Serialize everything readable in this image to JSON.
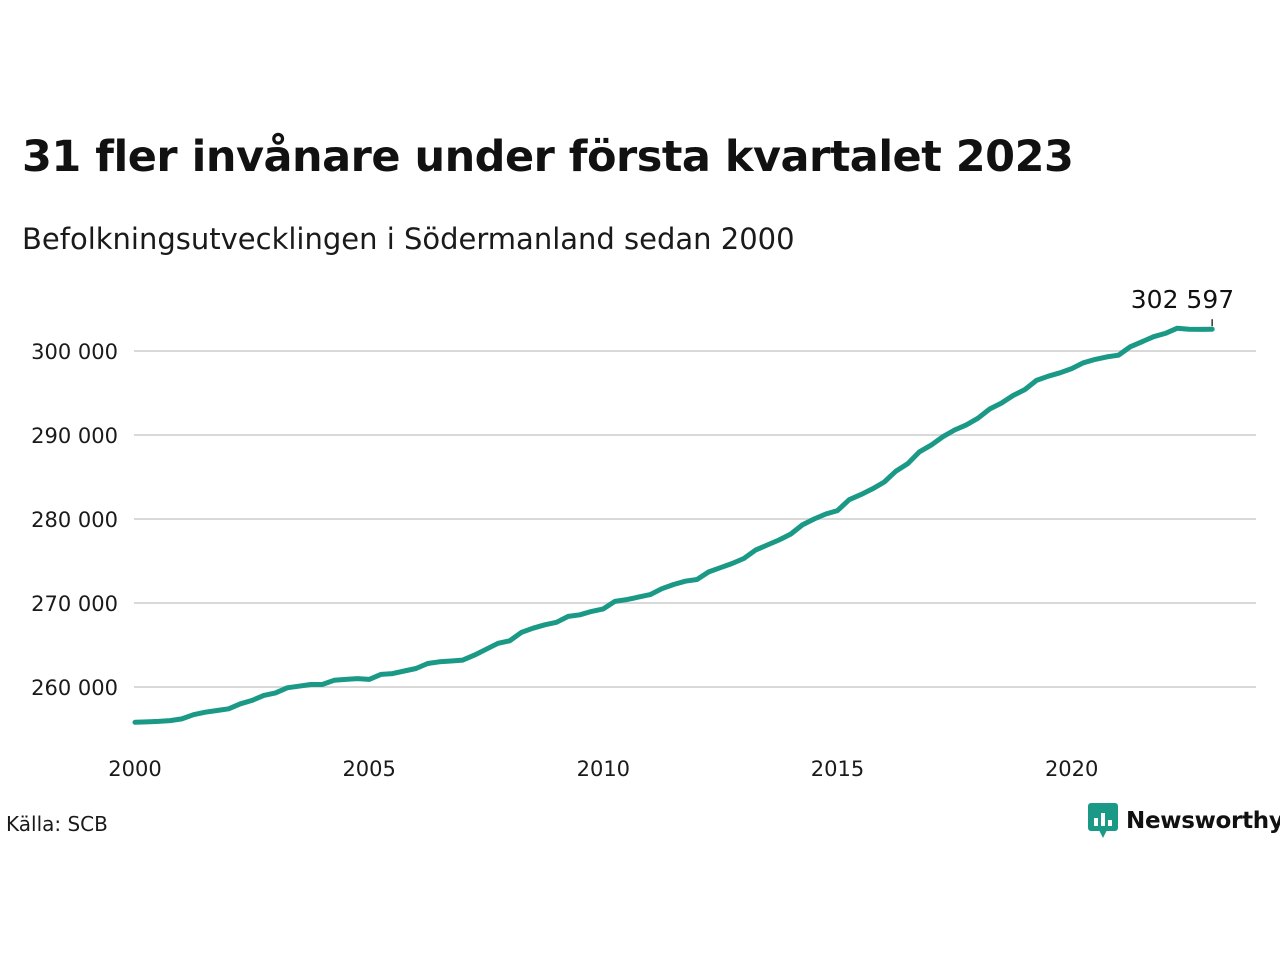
{
  "title": "31 fler invånare under första kvartalet 2023",
  "subtitle": "Befolkningsutvecklingen i Södermanland sedan 2000",
  "source": "Källa: SCB",
  "brand": {
    "name": "Newsworthy",
    "color": "#1a9a86",
    "icon": "newsworthy-logo-icon"
  },
  "colors": {
    "line": "#1a9a86",
    "grid": "#d9d9d9",
    "text": "#111111"
  },
  "chart_data": {
    "type": "line",
    "title": "31 fler invånare under första kvartalet 2023",
    "subtitle": "Befolkningsutvecklingen i Södermanland sedan 2000",
    "xlabel": "",
    "ylabel": "",
    "xlim": [
      2000,
      2024
    ],
    "ylim": [
      255000,
      303500
    ],
    "x_ticks": [
      2000,
      2005,
      2010,
      2015,
      2020
    ],
    "x_tick_labels": [
      "2000",
      "2005",
      "2010",
      "2015",
      "2020"
    ],
    "y_ticks": [
      260000,
      270000,
      280000,
      290000,
      300000
    ],
    "y_tick_labels": [
      "260 000",
      "270 000",
      "280 000",
      "290 000",
      "300 000"
    ],
    "grid": true,
    "end_label": "302 597",
    "series": [
      {
        "color": "#1a9a86",
        "points": [
          [
            2000.0,
            255800
          ],
          [
            2000.25,
            255850
          ],
          [
            2000.5,
            255900
          ],
          [
            2000.75,
            256000
          ],
          [
            2001.0,
            256200
          ],
          [
            2001.25,
            256700
          ],
          [
            2001.5,
            257000
          ],
          [
            2001.75,
            257200
          ],
          [
            2002.0,
            257400
          ],
          [
            2002.25,
            258000
          ],
          [
            2002.5,
            258400
          ],
          [
            2002.75,
            259000
          ],
          [
            2003.0,
            259300
          ],
          [
            2003.25,
            259900
          ],
          [
            2003.5,
            260100
          ],
          [
            2003.75,
            260300
          ],
          [
            2004.0,
            260300
          ],
          [
            2004.25,
            260800
          ],
          [
            2004.5,
            260900
          ],
          [
            2004.75,
            261000
          ],
          [
            2005.0,
            260900
          ],
          [
            2005.25,
            261500
          ],
          [
            2005.5,
            261600
          ],
          [
            2005.75,
            261900
          ],
          [
            2006.0,
            262200
          ],
          [
            2006.25,
            262800
          ],
          [
            2006.5,
            263000
          ],
          [
            2006.75,
            263100
          ],
          [
            2007.0,
            263200
          ],
          [
            2007.25,
            263800
          ],
          [
            2007.5,
            264500
          ],
          [
            2007.75,
            265200
          ],
          [
            2008.0,
            265500
          ],
          [
            2008.25,
            266500
          ],
          [
            2008.5,
            267000
          ],
          [
            2008.75,
            267400
          ],
          [
            2009.0,
            267700
          ],
          [
            2009.25,
            268400
          ],
          [
            2009.5,
            268600
          ],
          [
            2009.75,
            269000
          ],
          [
            2010.0,
            269300
          ],
          [
            2010.25,
            270200
          ],
          [
            2010.5,
            270400
          ],
          [
            2010.75,
            270700
          ],
          [
            2011.0,
            271000
          ],
          [
            2011.25,
            271700
          ],
          [
            2011.5,
            272200
          ],
          [
            2011.75,
            272600
          ],
          [
            2012.0,
            272800
          ],
          [
            2012.25,
            273700
          ],
          [
            2012.5,
            274200
          ],
          [
            2012.75,
            274700
          ],
          [
            2013.0,
            275300
          ],
          [
            2013.25,
            276300
          ],
          [
            2013.5,
            276900
          ],
          [
            2013.75,
            277500
          ],
          [
            2014.0,
            278200
          ],
          [
            2014.25,
            279300
          ],
          [
            2014.5,
            280000
          ],
          [
            2014.75,
            280600
          ],
          [
            2015.0,
            281000
          ],
          [
            2015.25,
            282300
          ],
          [
            2015.5,
            282900
          ],
          [
            2015.75,
            283600
          ],
          [
            2016.0,
            284400
          ],
          [
            2016.25,
            285700
          ],
          [
            2016.5,
            286600
          ],
          [
            2016.75,
            288000
          ],
          [
            2017.0,
            288800
          ],
          [
            2017.25,
            289800
          ],
          [
            2017.5,
            290600
          ],
          [
            2017.75,
            291200
          ],
          [
            2018.0,
            292000
          ],
          [
            2018.25,
            293100
          ],
          [
            2018.5,
            293800
          ],
          [
            2018.75,
            294700
          ],
          [
            2019.0,
            295400
          ],
          [
            2019.25,
            296500
          ],
          [
            2019.5,
            297000
          ],
          [
            2019.75,
            297400
          ],
          [
            2020.0,
            297900
          ],
          [
            2020.25,
            298600
          ],
          [
            2020.5,
            299000
          ],
          [
            2020.75,
            299300
          ],
          [
            2021.0,
            299500
          ],
          [
            2021.25,
            300500
          ],
          [
            2021.5,
            301100
          ],
          [
            2021.75,
            301700
          ],
          [
            2022.0,
            302100
          ],
          [
            2022.25,
            302700
          ],
          [
            2022.5,
            302600
          ],
          [
            2022.75,
            302566
          ],
          [
            2023.0,
            302597
          ]
        ]
      }
    ]
  }
}
